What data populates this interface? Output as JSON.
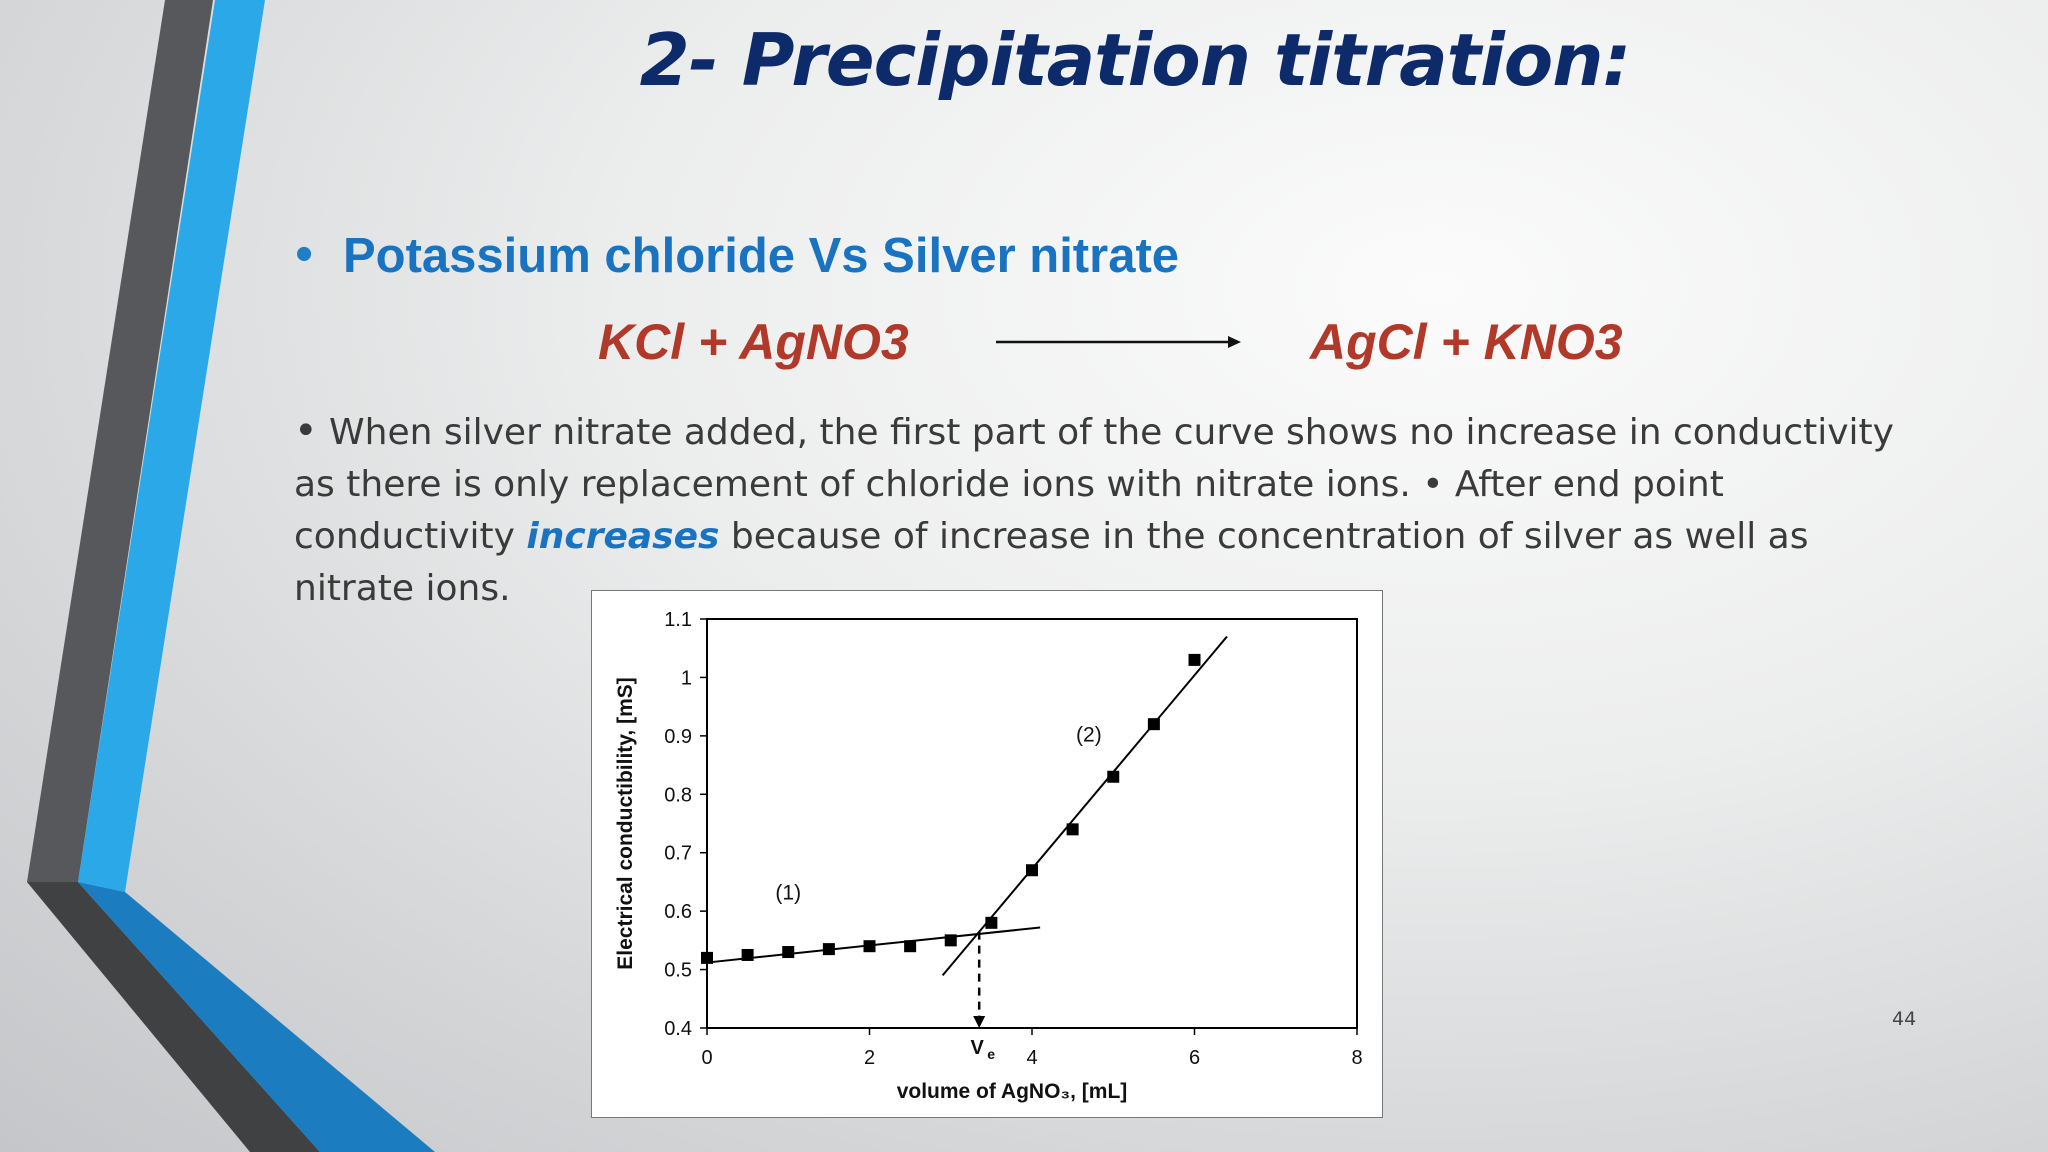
{
  "slide": {
    "title": "2- Precipitation titration:",
    "subtitle": "Potassium chloride Vs Silver nitrate",
    "reaction": {
      "reactants": "KCl + AgNO3",
      "products": "AgCl + KNO3"
    },
    "paragraph": {
      "part1": "When silver nitrate added, the first part of the curve shows no increase in conductivity as there is only replacement of chloride ions with nitrate ions. • After end point conductivity ",
      "emphasis": "increases",
      "part2": " because of increase in the concentration of silver as well as nitrate ions."
    },
    "page_number": "44",
    "colors": {
      "title": "#0d2b6b",
      "subtitle": "#1a73c0",
      "equation": "#b1392a",
      "accent_blue": "#2aa7e6",
      "accent_gray": "#555759"
    }
  },
  "chart_data": {
    "type": "scatter",
    "xlabel": "volume of AgNO₃, [mL]",
    "ylabel": "Electrical conductibility, [mS]",
    "xlim": [
      0,
      8
    ],
    "ylim": [
      0.4,
      1.1
    ],
    "x_ticks": [
      "0",
      "2",
      "4",
      "6",
      "8"
    ],
    "y_ticks": [
      "0.4",
      "0.5",
      "0.6",
      "0.7",
      "0.8",
      "0.9",
      "1",
      "1.1"
    ],
    "points": [
      {
        "x": 0,
        "y": 0.52
      },
      {
        "x": 0.5,
        "y": 0.525
      },
      {
        "x": 1,
        "y": 0.53
      },
      {
        "x": 1.5,
        "y": 0.535
      },
      {
        "x": 2,
        "y": 0.54
      },
      {
        "x": 2.5,
        "y": 0.54
      },
      {
        "x": 3,
        "y": 0.55
      },
      {
        "x": 3.5,
        "y": 0.58
      },
      {
        "x": 4,
        "y": 0.67
      },
      {
        "x": 4.5,
        "y": 0.74
      },
      {
        "x": 5,
        "y": 0.83
      },
      {
        "x": 5.5,
        "y": 0.92
      },
      {
        "x": 6,
        "y": 1.03
      }
    ],
    "fit_lines": [
      {
        "label": "(1)",
        "from": {
          "x": 0,
          "y": 0.512
        },
        "to": {
          "x": 4.1,
          "y": 0.572
        },
        "label_at": {
          "x": 1,
          "y": 0.62
        }
      },
      {
        "label": "(2)",
        "from": {
          "x": 2.9,
          "y": 0.49
        },
        "to": {
          "x": 6.4,
          "y": 1.07
        },
        "label_at": {
          "x": 4.7,
          "y": 0.89
        }
      }
    ],
    "endpoint": {
      "label": "V",
      "subscript": "e",
      "x": 3.35,
      "y": 0.565
    },
    "grid": false
  }
}
